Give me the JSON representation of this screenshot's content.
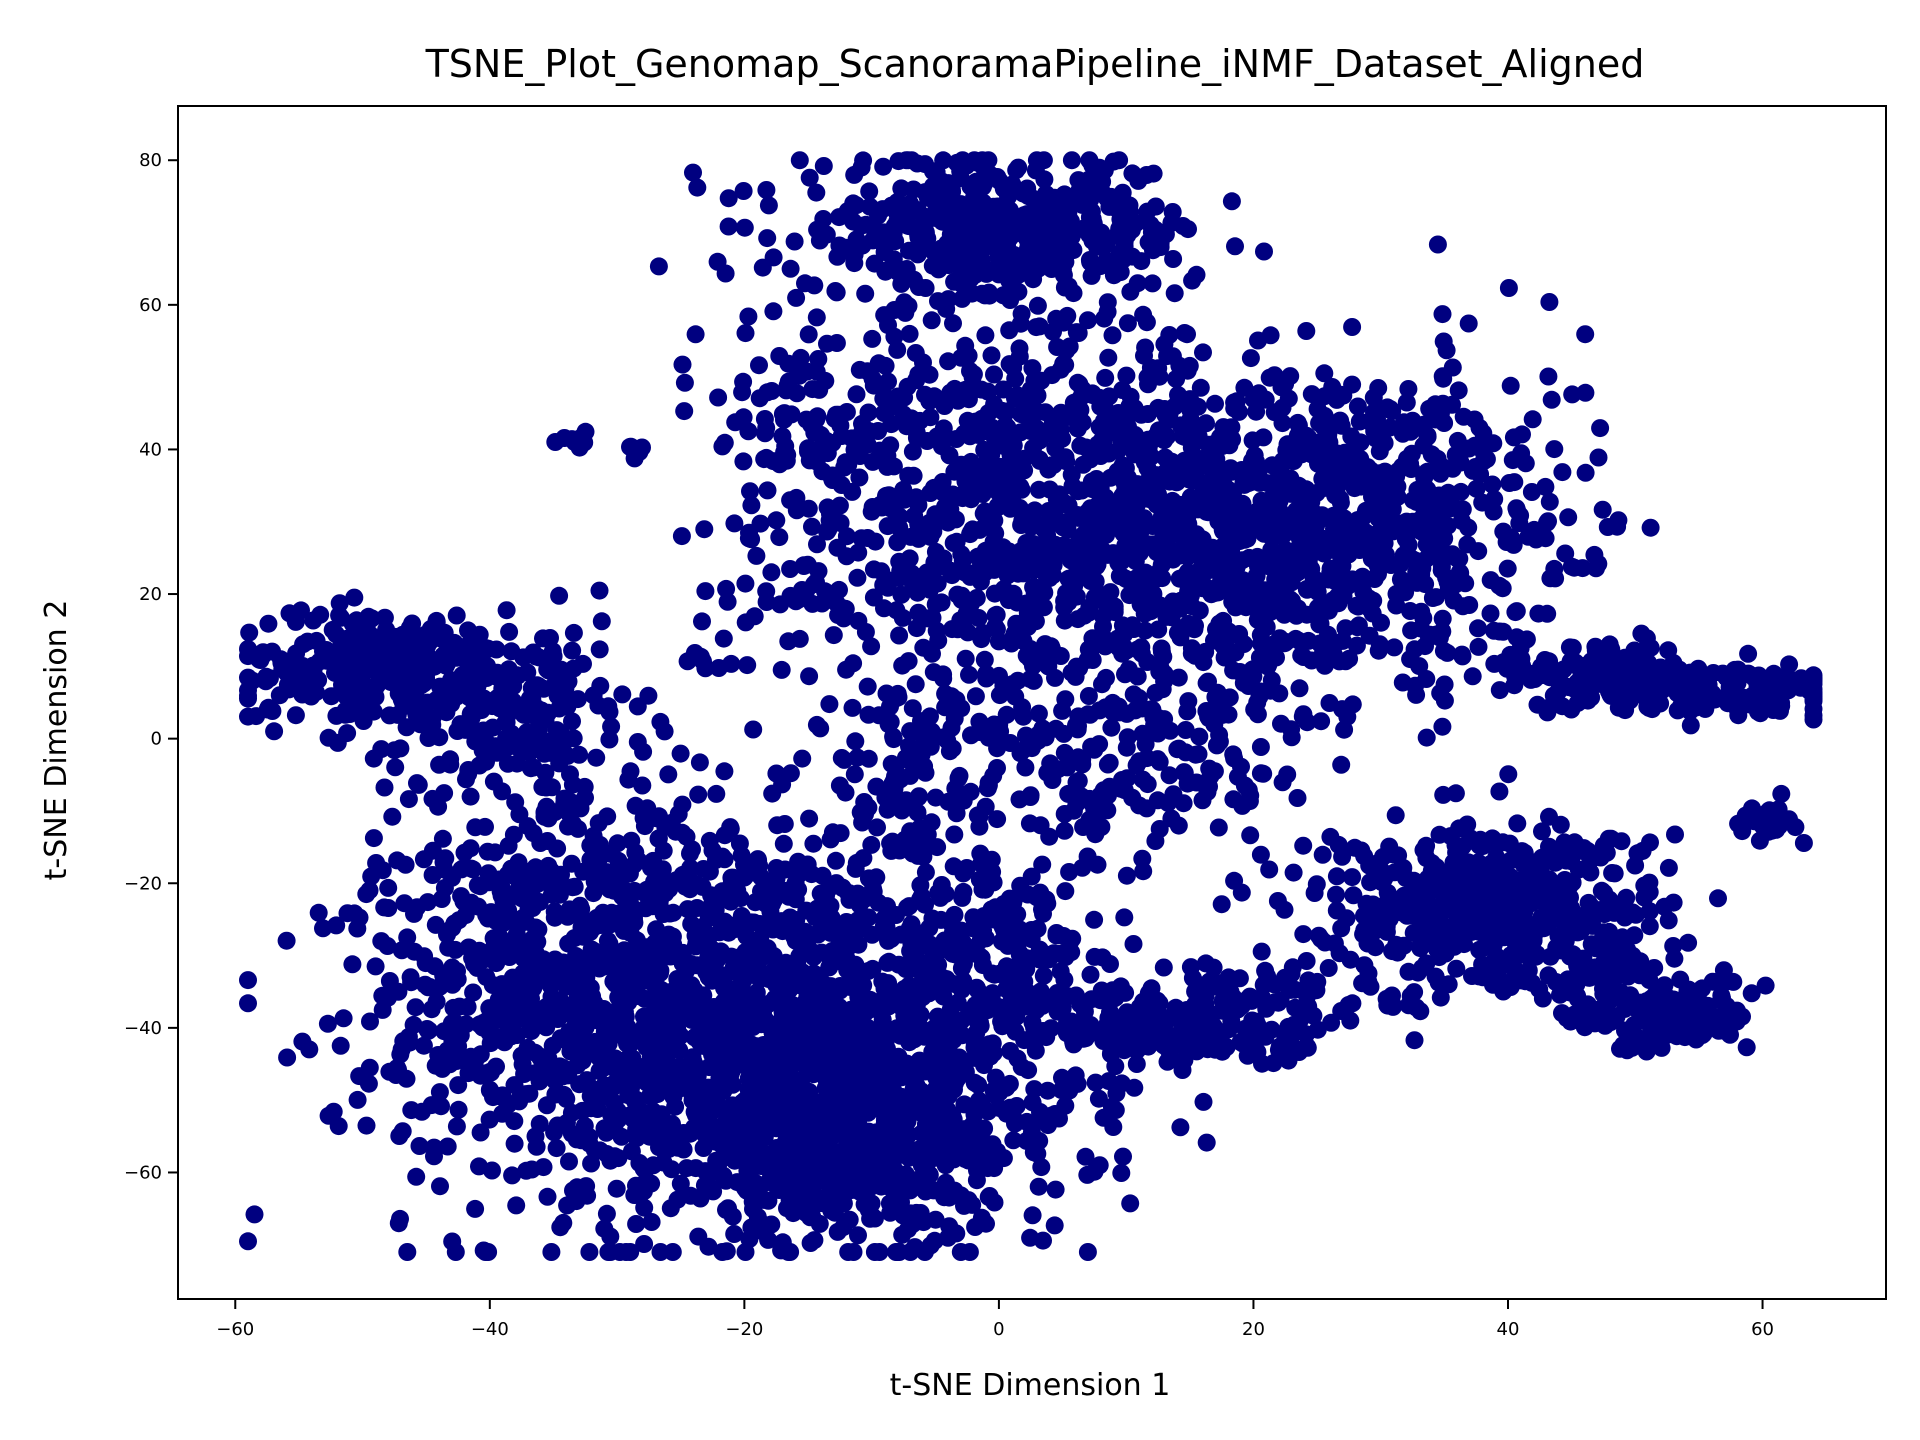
{
  "chart_data": {
    "type": "scatter",
    "title": "TSNE_Plot_Genomap_ScanoramaPipeline_iNMF_Dataset_Aligned",
    "xlabel": "t-SNE Dimension 1",
    "ylabel": "t-SNE Dimension 2",
    "xlim": [
      -64.5,
      69.7
    ],
    "ylim": [
      -77.5,
      87.5
    ],
    "xticks": [
      -60,
      -40,
      -20,
      0,
      20,
      40,
      60
    ],
    "yticks": [
      -60,
      -40,
      -20,
      0,
      20,
      40,
      60,
      80
    ],
    "xtick_labels": [
      "−60",
      "−40",
      "−20",
      "0",
      "20",
      "40",
      "60"
    ],
    "ytick_labels": [
      "−60",
      "−40",
      "−20",
      "0",
      "20",
      "40",
      "60",
      "80"
    ],
    "grid": false,
    "marker_color": "#000080",
    "clusters": [
      {
        "cx": -20,
        "cy": -40,
        "sx": 13,
        "sy": 14,
        "n": 1600
      },
      {
        "cx": -35,
        "cy": -25,
        "sx": 7,
        "sy": 12,
        "n": 350
      },
      {
        "cx": -48,
        "cy": 10,
        "sx": 6,
        "sy": 4,
        "n": 280
      },
      {
        "cx": -38,
        "cy": 3,
        "sx": 5,
        "sy": 6,
        "n": 160
      },
      {
        "cx": -10,
        "cy": -55,
        "sx": 8,
        "sy": 7,
        "n": 500
      },
      {
        "cx": 0,
        "cy": 70,
        "sx": 8,
        "sy": 5,
        "n": 420
      },
      {
        "cx": 0,
        "cy": 45,
        "sx": 8,
        "sy": 8,
        "n": 220
      },
      {
        "cx": 12,
        "cy": 25,
        "sx": 12,
        "sy": 12,
        "n": 1000
      },
      {
        "cx": 28,
        "cy": 32,
        "sx": 9,
        "sy": 11,
        "n": 500
      },
      {
        "cx": -15,
        "cy": 45,
        "sx": 4,
        "sy": 8,
        "n": 90
      },
      {
        "cx": -12,
        "cy": 22,
        "sx": 5,
        "sy": 7,
        "n": 90
      },
      {
        "cx": -8,
        "cy": -5,
        "sx": 3,
        "sy": 6,
        "n": 80
      },
      {
        "cx": 38,
        "cy": -22,
        "sx": 7,
        "sy": 5,
        "n": 450
      },
      {
        "cx": 52,
        "cy": -38,
        "sx": 3.5,
        "sy": 2.5,
        "n": 150
      },
      {
        "cx": 45,
        "cy": -30,
        "sx": 4,
        "sy": 4,
        "n": 80
      },
      {
        "cx": 15,
        "cy": -40,
        "sx": 6,
        "sy": 3,
        "n": 180
      },
      {
        "cx": 25,
        "cy": -35,
        "sx": 6,
        "sy": 3,
        "n": 60
      },
      {
        "cx": 55,
        "cy": 7,
        "sx": 6,
        "sy": 1.8,
        "n": 190
      },
      {
        "cx": 45,
        "cy": 10,
        "sx": 5,
        "sy": 2.5,
        "n": 80
      },
      {
        "cx": 60,
        "cy": -11,
        "sx": 1.2,
        "sy": 1.2,
        "n": 24
      },
      {
        "cx": -33.5,
        "cy": 41,
        "sx": 0.8,
        "sy": 0.8,
        "n": 8
      },
      {
        "cx": -29,
        "cy": 39.8,
        "sx": 0.8,
        "sy": 0.4,
        "n": 5
      },
      {
        "cx": -23.5,
        "cy": 10.5,
        "sx": 1.3,
        "sy": 0.5,
        "n": 6
      },
      {
        "cx": 10,
        "cy": -5,
        "sx": 7,
        "sy": 6,
        "n": 160
      },
      {
        "cx": 0,
        "cy": -30,
        "sx": 4,
        "sy": 6,
        "n": 120
      },
      {
        "cx": -3,
        "cy": 70,
        "sx": 3,
        "sy": 5,
        "n": 60
      }
    ]
  }
}
